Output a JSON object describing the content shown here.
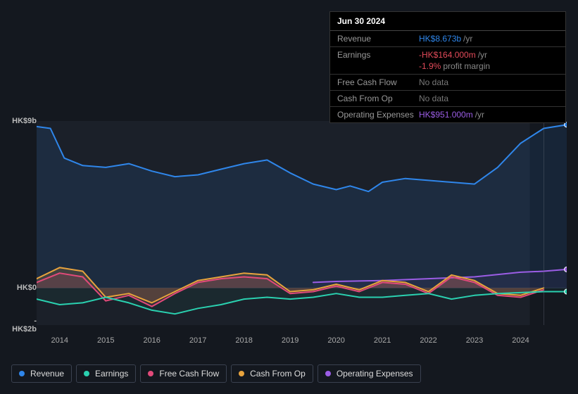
{
  "tooltip": {
    "date": "Jun 30 2024",
    "rows": [
      {
        "label": "Revenue",
        "value": "HK$8.673b",
        "value_color": "#2f86ea",
        "suffix": "/yr",
        "nodata": false
      },
      {
        "label": "Earnings",
        "value": "-HK$164.000m",
        "value_color": "#e24a59",
        "suffix": "/yr",
        "nodata": false,
        "sub_pct": "-1.9%",
        "sub_pct_color": "#e24a59",
        "sub_txt": "profit margin"
      },
      {
        "label": "Free Cash Flow",
        "value": "No data",
        "nodata": true
      },
      {
        "label": "Cash From Op",
        "value": "No data",
        "nodata": true
      },
      {
        "label": "Operating Expenses",
        "value": "HK$951.000m",
        "value_color": "#9b5de5",
        "suffix": "/yr",
        "nodata": false
      }
    ]
  },
  "chart": {
    "background": "#14181f",
    "plot_bg_inner": "#1b2029",
    "plot_bg_outer": "#14181f",
    "grid_color": "#2a3140",
    "axis_label_color": "#bbb",
    "axis_label_fontsize": 11,
    "ylim": [
      -2,
      9
    ],
    "y_ticks": [
      {
        "v": 9,
        "label": "HK$9b"
      },
      {
        "v": 0,
        "label": "HK$0"
      },
      {
        "v": -2,
        "label": "-HK$2b"
      }
    ],
    "xlim": [
      2013.5,
      2025.0
    ],
    "x_ticks": [
      2014,
      2015,
      2016,
      2017,
      2018,
      2019,
      2020,
      2021,
      2022,
      2023,
      2024
    ],
    "marker_x": 2024.5,
    "line_width": 2,
    "series": [
      {
        "name": "Revenue",
        "color": "#2f86ea",
        "fill": "#2f86ea",
        "fill_opacity": 0.12,
        "marker_end": true,
        "data": [
          [
            2013.5,
            8.7
          ],
          [
            2013.8,
            8.6
          ],
          [
            2014.1,
            7.0
          ],
          [
            2014.5,
            6.6
          ],
          [
            2015.0,
            6.5
          ],
          [
            2015.5,
            6.7
          ],
          [
            2016.0,
            6.3
          ],
          [
            2016.5,
            6.0
          ],
          [
            2017.0,
            6.1
          ],
          [
            2017.5,
            6.4
          ],
          [
            2018.0,
            6.7
          ],
          [
            2018.5,
            6.9
          ],
          [
            2019.0,
            6.2
          ],
          [
            2019.5,
            5.6
          ],
          [
            2020.0,
            5.3
          ],
          [
            2020.3,
            5.5
          ],
          [
            2020.7,
            5.2
          ],
          [
            2021.0,
            5.7
          ],
          [
            2021.5,
            5.9
          ],
          [
            2022.0,
            5.8
          ],
          [
            2022.5,
            5.7
          ],
          [
            2023.0,
            5.6
          ],
          [
            2023.5,
            6.5
          ],
          [
            2024.0,
            7.8
          ],
          [
            2024.5,
            8.6
          ],
          [
            2025.0,
            8.8
          ]
        ]
      },
      {
        "name": "Operating Expenses",
        "color": "#9b5de5",
        "fill": "#9b5de5",
        "fill_opacity": 0.06,
        "marker_end": true,
        "data": [
          [
            2019.5,
            0.3
          ],
          [
            2020.0,
            0.35
          ],
          [
            2021.0,
            0.4
          ],
          [
            2022.0,
            0.5
          ],
          [
            2023.0,
            0.6
          ],
          [
            2024.0,
            0.85
          ],
          [
            2024.5,
            0.9
          ],
          [
            2025.0,
            1.0
          ]
        ]
      },
      {
        "name": "Cash From Op",
        "color": "#e8a33d",
        "fill": "#e8a33d",
        "fill_opacity": 0.18,
        "marker_end": false,
        "data": [
          [
            2013.5,
            0.5
          ],
          [
            2014.0,
            1.1
          ],
          [
            2014.5,
            0.9
          ],
          [
            2015.0,
            -0.5
          ],
          [
            2015.5,
            -0.3
          ],
          [
            2016.0,
            -0.8
          ],
          [
            2016.5,
            -0.2
          ],
          [
            2017.0,
            0.4
          ],
          [
            2017.5,
            0.6
          ],
          [
            2018.0,
            0.8
          ],
          [
            2018.5,
            0.7
          ],
          [
            2019.0,
            -0.2
          ],
          [
            2019.5,
            -0.1
          ],
          [
            2020.0,
            0.2
          ],
          [
            2020.5,
            -0.1
          ],
          [
            2021.0,
            0.4
          ],
          [
            2021.5,
            0.3
          ],
          [
            2022.0,
            -0.2
          ],
          [
            2022.5,
            0.7
          ],
          [
            2023.0,
            0.4
          ],
          [
            2023.5,
            -0.3
          ],
          [
            2024.0,
            -0.4
          ],
          [
            2024.5,
            0.0
          ]
        ]
      },
      {
        "name": "Free Cash Flow",
        "color": "#e24a7a",
        "fill": "#e24a7a",
        "fill_opacity": 0.14,
        "marker_end": false,
        "data": [
          [
            2013.5,
            0.3
          ],
          [
            2014.0,
            0.8
          ],
          [
            2014.5,
            0.6
          ],
          [
            2015.0,
            -0.7
          ],
          [
            2015.5,
            -0.4
          ],
          [
            2016.0,
            -1.0
          ],
          [
            2016.5,
            -0.3
          ],
          [
            2017.0,
            0.3
          ],
          [
            2017.5,
            0.5
          ],
          [
            2018.0,
            0.6
          ],
          [
            2018.5,
            0.5
          ],
          [
            2019.0,
            -0.3
          ],
          [
            2019.5,
            -0.2
          ],
          [
            2020.0,
            0.1
          ],
          [
            2020.5,
            -0.2
          ],
          [
            2021.0,
            0.3
          ],
          [
            2021.5,
            0.2
          ],
          [
            2022.0,
            -0.3
          ],
          [
            2022.5,
            0.6
          ],
          [
            2023.0,
            0.3
          ],
          [
            2023.5,
            -0.4
          ],
          [
            2024.0,
            -0.5
          ],
          [
            2024.5,
            -0.1
          ]
        ]
      },
      {
        "name": "Earnings",
        "color": "#2ad1b0",
        "fill": "#2ad1b0",
        "fill_opacity": 0.05,
        "marker_end": true,
        "data": [
          [
            2013.5,
            -0.6
          ],
          [
            2014.0,
            -0.9
          ],
          [
            2014.5,
            -0.8
          ],
          [
            2015.0,
            -0.5
          ],
          [
            2015.5,
            -0.8
          ],
          [
            2016.0,
            -1.2
          ],
          [
            2016.5,
            -1.4
          ],
          [
            2017.0,
            -1.1
          ],
          [
            2017.5,
            -0.9
          ],
          [
            2018.0,
            -0.6
          ],
          [
            2018.5,
            -0.5
          ],
          [
            2019.0,
            -0.6
          ],
          [
            2019.5,
            -0.5
          ],
          [
            2020.0,
            -0.3
          ],
          [
            2020.5,
            -0.5
          ],
          [
            2021.0,
            -0.5
          ],
          [
            2021.5,
            -0.4
          ],
          [
            2022.0,
            -0.3
          ],
          [
            2022.5,
            -0.6
          ],
          [
            2023.0,
            -0.4
          ],
          [
            2023.5,
            -0.3
          ],
          [
            2024.0,
            -0.25
          ],
          [
            2024.5,
            -0.2
          ],
          [
            2025.0,
            -0.2
          ]
        ]
      }
    ]
  },
  "legend": [
    {
      "label": "Revenue",
      "color": "#2f86ea"
    },
    {
      "label": "Earnings",
      "color": "#2ad1b0"
    },
    {
      "label": "Free Cash Flow",
      "color": "#e24a7a"
    },
    {
      "label": "Cash From Op",
      "color": "#e8a33d"
    },
    {
      "label": "Operating Expenses",
      "color": "#9b5de5"
    }
  ]
}
